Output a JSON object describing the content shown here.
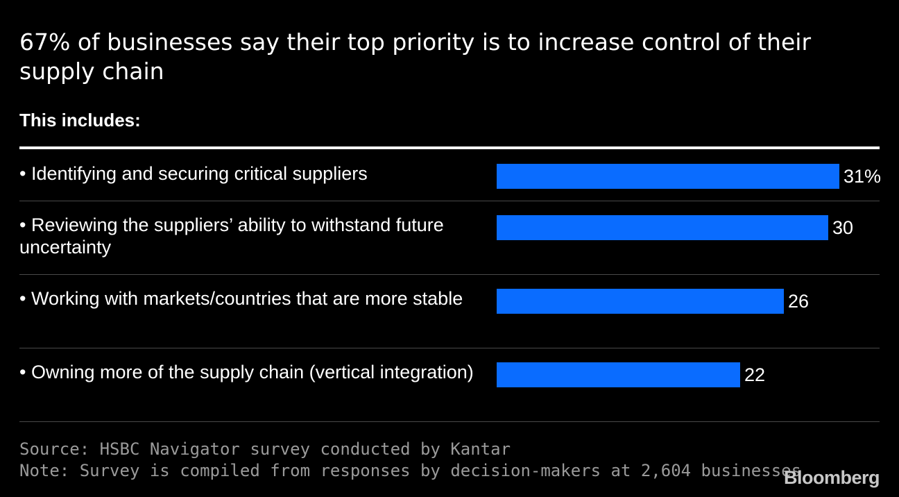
{
  "header": {
    "title": "67% of businesses say their top priority is to increase control of their supply chain",
    "subtitle": "This includes:"
  },
  "chart_data": {
    "type": "bar",
    "orientation": "horizontal",
    "title": "67% of businesses say their top priority is to increase control of their supply chain",
    "subtitle": "This includes:",
    "categories": [
      "• Identifying and securing critical suppliers",
      "• Reviewing the suppliers’ ability to withstand future uncertainty",
      "• Working with markets/countries that are more stable",
      "• Owning more of the supply chain (vertical integration)"
    ],
    "values": [
      31,
      30,
      26,
      22
    ],
    "value_labels": [
      "31%",
      "30",
      "26",
      "22"
    ],
    "unit": "%",
    "xlim": [
      0,
      31
    ],
    "bar_color": "#0a6cff",
    "grid": false,
    "xlabel": "",
    "ylabel": ""
  },
  "footer": {
    "source": "Source: HSBC Navigator survey conducted by Kantar",
    "note": "Note: Survey is compiled from responses by decision-makers at 2,604 businesses",
    "brand": "Bloomberg"
  }
}
